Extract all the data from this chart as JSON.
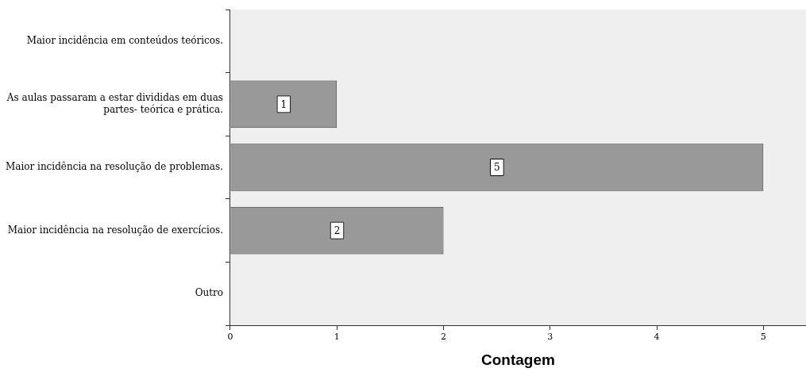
{
  "chart_data": {
    "type": "bar",
    "orientation": "horizontal",
    "xlabel": "Contagem",
    "categories": [
      "Maior incidência em conteúdos teóricos.",
      "As aulas passaram a estar divididas em duas\npartes- teórica e prática.",
      "Maior incidência na resolução de problemas.",
      "Maior incidência na resolução de exercícios.",
      "Outro"
    ],
    "values": [
      0,
      1,
      5,
      2,
      0
    ],
    "value_labels": [
      null,
      "1",
      "5",
      "2",
      null
    ],
    "color": "#999999",
    "xlim": [
      0,
      5.4
    ],
    "xticks": [
      0,
      1,
      2,
      3,
      4,
      5
    ]
  }
}
